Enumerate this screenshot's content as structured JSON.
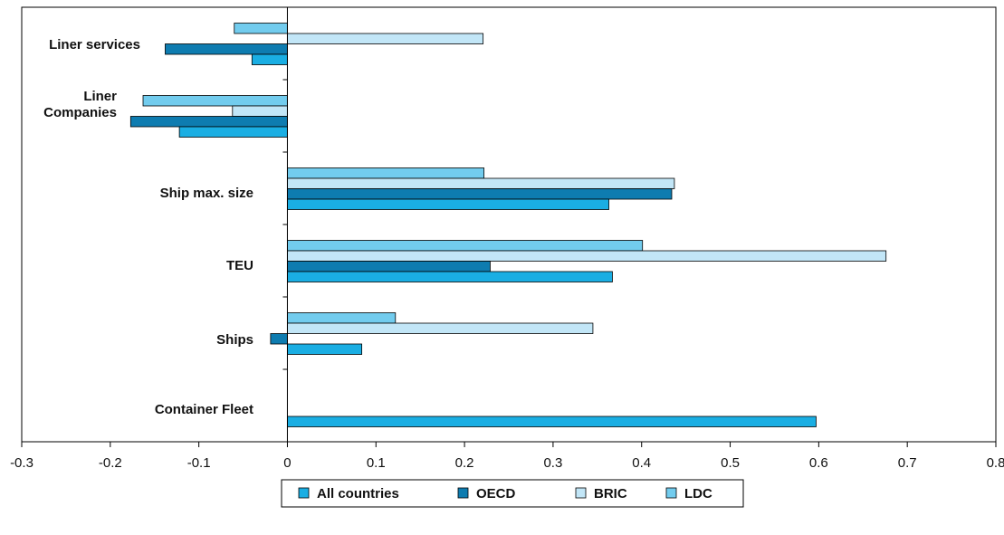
{
  "chart_data": {
    "type": "bar",
    "orientation": "horizontal",
    "categories": [
      "Liner services",
      "Liner Companies",
      "Ship max. size",
      "TEU",
      "Ships",
      "Container Fleet"
    ],
    "series": [
      {
        "name": "All countries",
        "color": "#1aaee3",
        "values": [
          -0.04,
          -0.122,
          0.363,
          0.367,
          0.084,
          0.597
        ]
      },
      {
        "name": "OECD",
        "color": "#0e7cb0",
        "values": [
          -0.138,
          -0.177,
          0.434,
          0.229,
          -0.019,
          null
        ]
      },
      {
        "name": "BRIC",
        "color": "#c2e6f7",
        "values": [
          0.221,
          -0.062,
          0.437,
          0.676,
          0.345,
          null
        ]
      },
      {
        "name": "LDC",
        "color": "#72ccee",
        "values": [
          -0.06,
          -0.163,
          0.222,
          0.401,
          0.122,
          null
        ]
      }
    ],
    "xlim": [
      -0.3,
      0.8
    ],
    "xticks": [
      "-0.3",
      "-0.2",
      "-0.1",
      "0",
      "0.1",
      "0.2",
      "0.3",
      "0.4",
      "0.5",
      "0.6",
      "0.7",
      "0.8"
    ],
    "category_labels": [
      [
        "Liner services"
      ],
      [
        "Liner",
        "Companies"
      ],
      [
        "Ship max. size"
      ],
      [
        "TEU"
      ],
      [
        "Ships"
      ],
      [
        "Container Fleet"
      ]
    ],
    "title": "",
    "xlabel": "",
    "ylabel": "",
    "grid": false,
    "legend_position": "bottom"
  }
}
